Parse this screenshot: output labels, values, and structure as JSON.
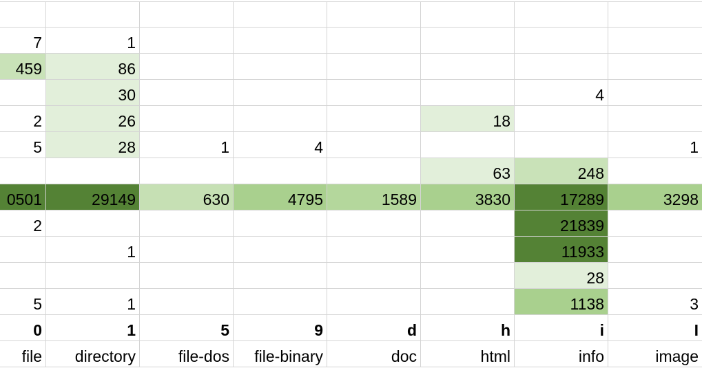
{
  "sheet": {
    "rows": [
      [
        null,
        null,
        null,
        null,
        null,
        null,
        null,
        null
      ],
      [
        7,
        1,
        null,
        null,
        null,
        null,
        null,
        null
      ],
      [
        {
          "text": 459,
          "fill": "#c9e2b8"
        },
        {
          "text": 86,
          "fill": "#e2efda"
        },
        null,
        null,
        null,
        null,
        null,
        null
      ],
      [
        null,
        {
          "text": 30,
          "fill": "#e2efda"
        },
        null,
        null,
        null,
        null,
        4,
        null
      ],
      [
        2,
        {
          "text": 26,
          "fill": "#e2efda"
        },
        null,
        null,
        null,
        {
          "text": 18,
          "fill": "#e2efda"
        },
        null,
        null
      ],
      [
        5,
        {
          "text": 28,
          "fill": "#e2efda"
        },
        1,
        4,
        null,
        null,
        null,
        1
      ],
      [
        null,
        null,
        null,
        null,
        null,
        {
          "text": 63,
          "fill": "#e2efda"
        },
        {
          "text": 248,
          "fill": "#c9e2b8"
        },
        null
      ],
      [
        {
          "text": "0501",
          "fill": "#548235"
        },
        {
          "text": 29149,
          "fill": "#548235"
        },
        {
          "text": 630,
          "fill": "#c6e0b4"
        },
        {
          "text": 4795,
          "fill": "#a9d08e"
        },
        {
          "text": 1589,
          "fill": "#b4d79c"
        },
        {
          "text": 3830,
          "fill": "#a9d08e"
        },
        {
          "text": 17289,
          "fill": "#548235"
        },
        {
          "text": 3298,
          "fill": "#a9d08e"
        }
      ],
      [
        2,
        null,
        null,
        null,
        null,
        null,
        {
          "text": 21839,
          "fill": "#548235"
        },
        null
      ],
      [
        null,
        1,
        null,
        null,
        null,
        null,
        {
          "text": 11933,
          "fill": "#548235"
        },
        null
      ],
      [
        null,
        null,
        null,
        null,
        null,
        null,
        {
          "text": 28,
          "fill": "#e2efda"
        },
        null
      ],
      [
        5,
        1,
        null,
        null,
        null,
        null,
        {
          "text": 1138,
          "fill": "#a9d08e"
        },
        3
      ],
      [
        0,
        1,
        5,
        9,
        "d",
        "h",
        "i",
        "I"
      ],
      [
        "file",
        "directory",
        "file-dos",
        "file-binary",
        "doc",
        "html",
        "info",
        "image"
      ]
    ],
    "bold_row": 12
  }
}
